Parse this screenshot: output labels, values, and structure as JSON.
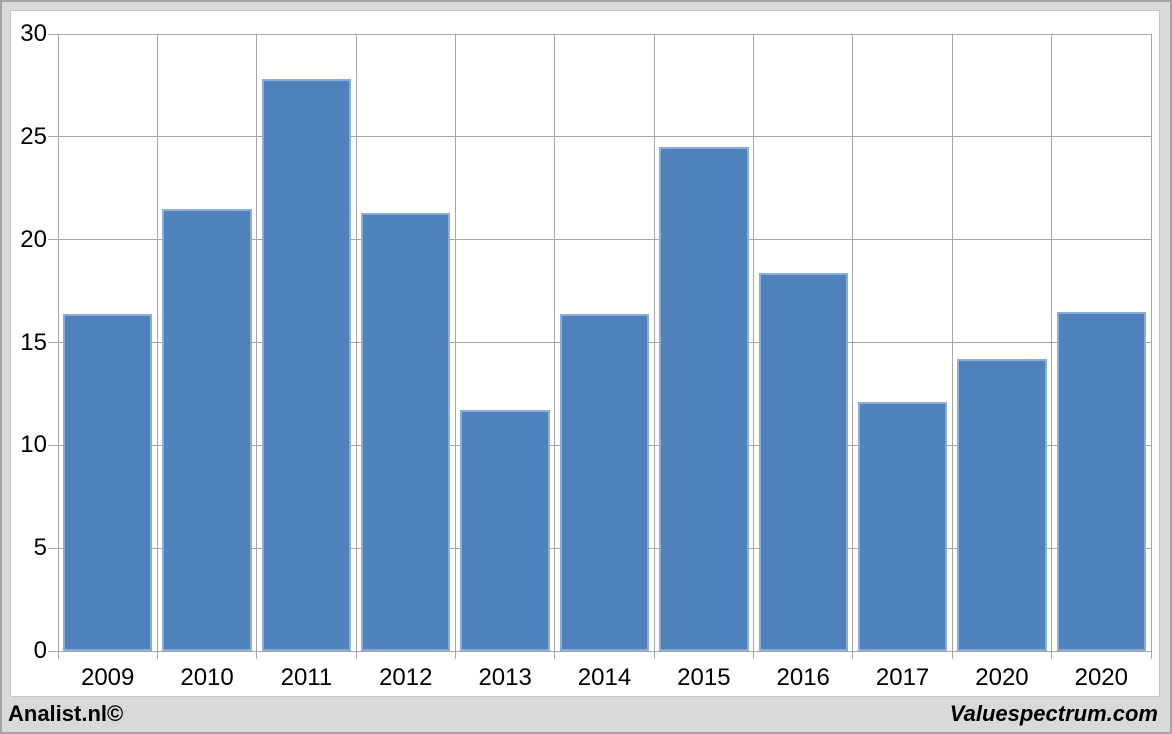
{
  "branding": {
    "left": "Analist.nl©",
    "right": "Valuespectrum.com"
  },
  "colors": {
    "bar": "#4f81bd",
    "grid": "#a6a6a6",
    "axis": "#a6a6a6",
    "panel_bg": "#ffffff",
    "outer_bg": "#d9d9d9",
    "text": "#000000"
  },
  "chart_data": {
    "type": "bar",
    "categories": [
      "2009",
      "2010",
      "2011",
      "2012",
      "2013",
      "2014",
      "2015",
      "2016",
      "2017",
      "2020",
      "2020"
    ],
    "values": [
      16.4,
      21.5,
      27.8,
      21.3,
      11.7,
      16.4,
      24.5,
      18.4,
      12.1,
      14.2,
      16.5
    ],
    "title": "",
    "xlabel": "",
    "ylabel": "",
    "ylim": [
      0,
      30
    ],
    "yticks": [
      0,
      5,
      10,
      15,
      20,
      25,
      30
    ],
    "grid": true,
    "legend": false
  }
}
